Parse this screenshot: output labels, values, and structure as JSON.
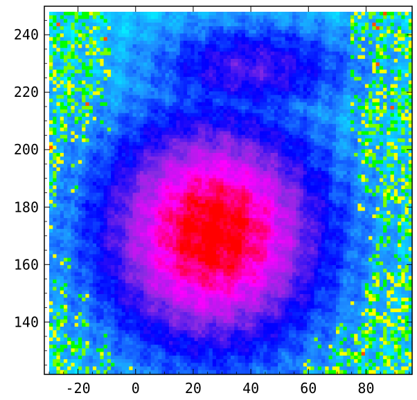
{
  "chart_data": {
    "type": "heatmap",
    "title": "",
    "xlabel": "",
    "ylabel": "",
    "xlim": [
      -30,
      96
    ],
    "ylim": [
      122,
      248
    ],
    "x_ticks": [
      -20,
      0,
      20,
      40,
      60,
      80
    ],
    "y_ticks": [
      140,
      160,
      180,
      200,
      220,
      240
    ],
    "x_tick_labels": [
      "-20",
      "0",
      "20",
      "40",
      "60",
      "80"
    ],
    "y_tick_labels": [
      "140",
      "160",
      "180",
      "200",
      "220",
      "240"
    ],
    "colormap": [
      "#00ffff",
      "#1e90ff",
      "#0000ff",
      "#8a2be2",
      "#ff00ff",
      "#ff0000"
    ],
    "peak": {
      "x": 27,
      "y": 171
    },
    "grid": false,
    "legend": "none"
  }
}
